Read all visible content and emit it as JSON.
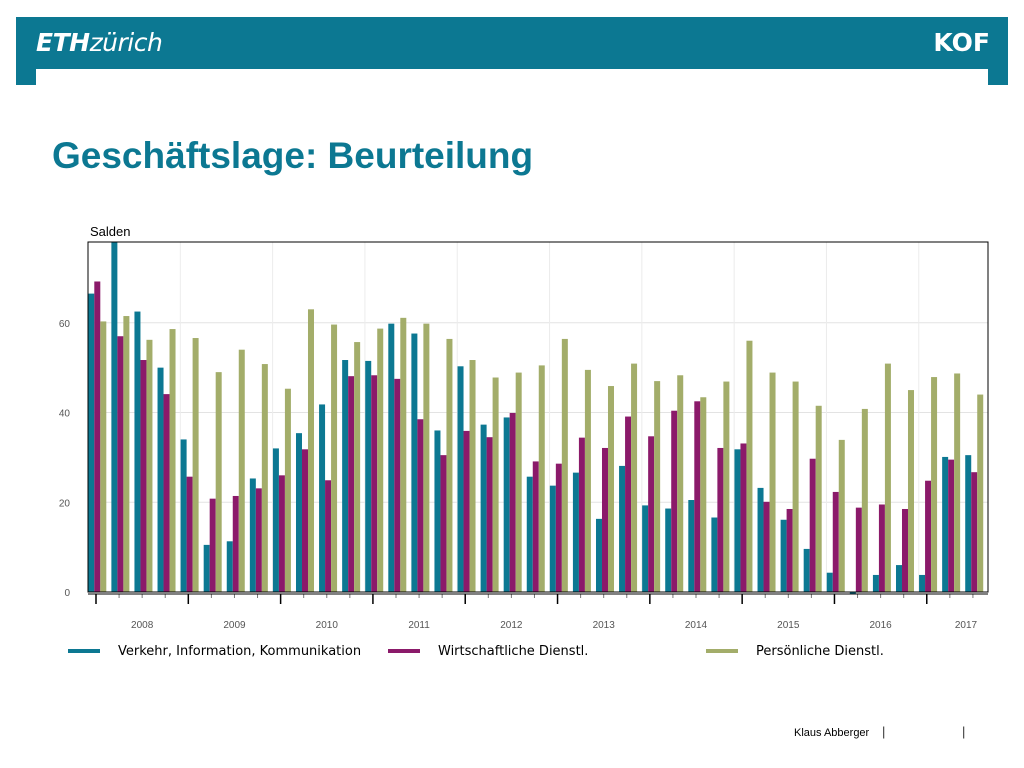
{
  "header": {
    "logo_left_bold": "ETH",
    "logo_left_rest": "zürich",
    "logo_right": "KOF",
    "brand_color": "#0c7892"
  },
  "page": {
    "title": "Geschäftslage: Beurteilung",
    "footer_author": "Klaus Abberger",
    "footer_sep": "|"
  },
  "chart_data": {
    "type": "bar",
    "ylabel": "Salden",
    "ylim": [
      0,
      78
    ],
    "yticks": [
      0,
      20,
      40,
      60
    ],
    "grid": true,
    "legend_position": "bottom",
    "periods": [
      "2008 Q1",
      "2008 Q2",
      "2008 Q3",
      "2008 Q4",
      "2009 Q1",
      "2009 Q2",
      "2009 Q3",
      "2009 Q4",
      "2010 Q1",
      "2010 Q2",
      "2010 Q3",
      "2010 Q4",
      "2011 Q1",
      "2011 Q2",
      "2011 Q3",
      "2011 Q4",
      "2012 Q1",
      "2012 Q2",
      "2012 Q3",
      "2012 Q4",
      "2013 Q1",
      "2013 Q2",
      "2013 Q3",
      "2013 Q4",
      "2014 Q1",
      "2014 Q2",
      "2014 Q3",
      "2014 Q4",
      "2015 Q1",
      "2015 Q2",
      "2015 Q3",
      "2015 Q4",
      "2016 Q1",
      "2016 Q2",
      "2016 Q3",
      "2016 Q4",
      "2017 Q1",
      "2017 Q2",
      "2017 Q3"
    ],
    "year_labels": [
      "2008",
      "2009",
      "2010",
      "2011",
      "2012",
      "2013",
      "2014",
      "2015",
      "2016",
      "2017"
    ],
    "series": [
      {
        "name": "Verkehr, Information, Kommunikation",
        "color": "#0c7892",
        "values": [
          66.5,
          78,
          62.5,
          50,
          34,
          10.5,
          11.3,
          25.3,
          32,
          35.4,
          41.8,
          51.7,
          51.5,
          59.8,
          57.6,
          36,
          50.3,
          37.3,
          38.9,
          25.7,
          23.7,
          26.6,
          16.3,
          28.1,
          19.3,
          18.6,
          20.5,
          16.6,
          31.8,
          23.2,
          16.1,
          9.6,
          4.3,
          -0.4,
          3.8,
          6,
          3.8,
          30.1,
          30.5
        ]
      },
      {
        "name": "Wirtschaftliche Dienstl.",
        "color": "#8b1a6a",
        "values": [
          69.2,
          57,
          51.7,
          44.1,
          25.7,
          20.8,
          21.4,
          23.1,
          26,
          31.8,
          24.9,
          48.1,
          48.3,
          47.5,
          38.5,
          30.5,
          35.9,
          34.5,
          39.9,
          29.1,
          28.6,
          34.4,
          32.1,
          39.1,
          34.7,
          40.4,
          42.5,
          32.1,
          33.1,
          20.1,
          18.5,
          29.7,
          22.3,
          18.8,
          19.5,
          18.5,
          24.8,
          29.5,
          26.7
        ]
      },
      {
        "name": "Persönliche Dienstl.",
        "color": "#a3ad6a",
        "values": [
          60.3,
          61.5,
          56.2,
          58.6,
          56.6,
          49,
          54,
          50.8,
          45.3,
          63,
          59.6,
          55.7,
          58.7,
          61.1,
          59.8,
          56.4,
          51.7,
          47.8,
          48.9,
          50.5,
          56.4,
          49.5,
          45.9,
          50.9,
          47,
          48.3,
          43.4,
          46.9,
          56,
          48.9,
          46.9,
          41.5,
          33.9,
          40.8,
          50.9,
          45,
          47.9,
          48.7,
          44
        ]
      }
    ]
  }
}
